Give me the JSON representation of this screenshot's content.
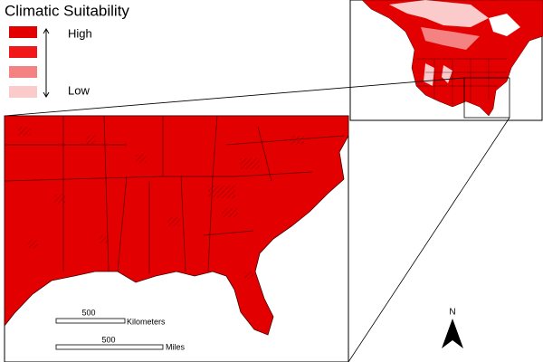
{
  "legend": {
    "title": "Climatic Suitability",
    "high": "High",
    "low": "Low"
  },
  "scale": {
    "km_value": 500,
    "km_unit": "Kilometers",
    "mi_value": 500,
    "mi_unit": "Miles"
  },
  "north": "N"
}
